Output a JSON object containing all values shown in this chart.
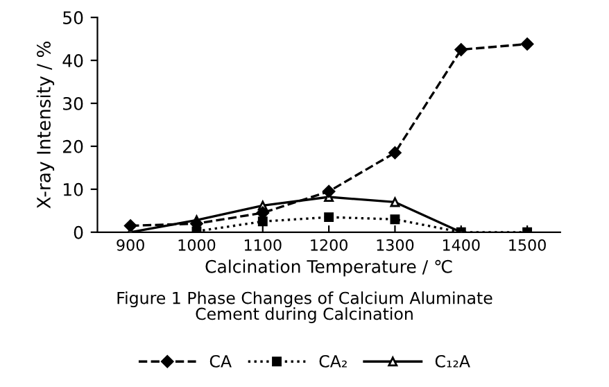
{
  "chart_data": {
    "type": "line",
    "title": "Figure 1 Phase Changes of Calcium Aluminate\nCement during Calcination",
    "xlabel": "Calcination Temperature / ℃",
    "ylabel": "X-ray Intensity / %",
    "x": [
      900,
      1000,
      1100,
      1200,
      1300,
      1400,
      1500
    ],
    "xlim": [
      850,
      1550
    ],
    "xticks": [
      900,
      1000,
      1100,
      1200,
      1300,
      1400,
      1500
    ],
    "ylim": [
      0,
      50
    ],
    "yticks": [
      0,
      10,
      20,
      30,
      40,
      50
    ],
    "grid": false,
    "legend": "bottom",
    "series": [
      {
        "name": "CA",
        "color": "#000000",
        "marker": "diamond",
        "line_style": "dashed",
        "values": [
          1.5,
          2,
          4.5,
          9.5,
          18.5,
          42.5,
          43.8
        ]
      },
      {
        "name": "CA₂",
        "color": "#000000",
        "marker": "square",
        "line_style": "dotted",
        "values": [
          null,
          0.2,
          2.5,
          3.5,
          3.0,
          0,
          0
        ]
      },
      {
        "name": "C₁₂A",
        "color": "#000000",
        "marker": "triangle",
        "line_style": "solid",
        "values": [
          0,
          2.8,
          6.2,
          8.2,
          7.0,
          0,
          null
        ]
      }
    ]
  }
}
